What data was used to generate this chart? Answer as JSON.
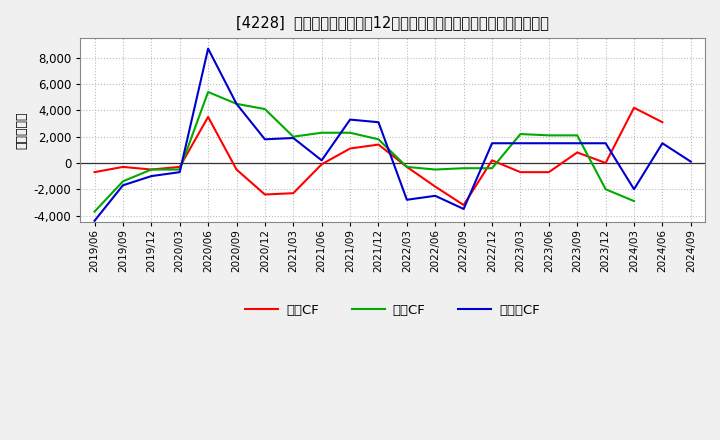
{
  "title": "[4228]  キャッシュフローの12か月移動合計の対前年同期増減額の推移",
  "ylabel": "（百万円）",
  "background_color": "#f0f0f0",
  "plot_bg_color": "#ffffff",
  "grid_color": "#bbbbbb",
  "x_labels": [
    "2019/06",
    "2019/09",
    "2019/12",
    "2020/03",
    "2020/06",
    "2020/09",
    "2020/12",
    "2021/03",
    "2021/06",
    "2021/09",
    "2021/12",
    "2022/03",
    "2022/06",
    "2022/09",
    "2022/12",
    "2023/03",
    "2023/06",
    "2023/09",
    "2023/12",
    "2024/03",
    "2024/06",
    "2024/09"
  ],
  "eigyo_cf": [
    -700,
    -300,
    -500,
    -300,
    3500,
    -500,
    -2400,
    -2300,
    -100,
    1100,
    1400,
    -300,
    -1800,
    -3200,
    200,
    -700,
    -700,
    800,
    0,
    4200,
    3100,
    null
  ],
  "toshi_cf": [
    -3700,
    -1400,
    -500,
    -500,
    5400,
    4500,
    4100,
    2000,
    2300,
    2300,
    1800,
    -300,
    -500,
    -400,
    -400,
    2200,
    2100,
    2100,
    -2000,
    -2900,
    null,
    null
  ],
  "free_cf": [
    -4400,
    -1700,
    -1000,
    -700,
    8700,
    4500,
    1800,
    1900,
    200,
    3300,
    3100,
    -2800,
    -2500,
    -3500,
    1500,
    1500,
    1500,
    1500,
    1500,
    -2000,
    1500,
    100
  ],
  "line_colors": {
    "eigyo": "#ff0000",
    "toshi": "#00aa00",
    "free": "#0000cc"
  },
  "ylim": [
    -4500,
    9500
  ],
  "yticks": [
    -4000,
    -2000,
    0,
    2000,
    4000,
    6000,
    8000
  ],
  "legend_labels": [
    "営業CF",
    "投資CF",
    "フリーCF"
  ]
}
